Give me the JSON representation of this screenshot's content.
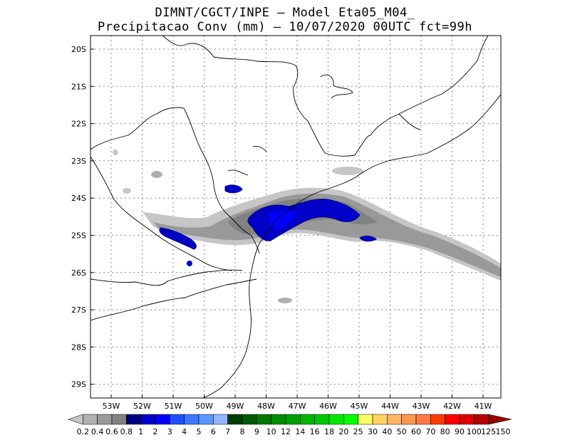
{
  "title": {
    "line1": "DIMNT/CGCT/INPE –  Model Eta05_M04_",
    "line2": "Precipitacao Conv (mm) – 10/07/2020 00UTC fct=99h"
  },
  "map": {
    "lat_labels": [
      "20S",
      "21S",
      "22S",
      "23S",
      "24S",
      "25S",
      "26S",
      "27S",
      "28S",
      "29S"
    ],
    "lon_labels": [
      "53W",
      "52W",
      "51W",
      "50W",
      "49W",
      "48W",
      "47W",
      "46W",
      "45W",
      "44W",
      "43W",
      "42W",
      "41W"
    ]
  },
  "colorbar": {
    "labels": [
      "0.2",
      "0.4",
      "0.6",
      "0.8",
      "1",
      "2",
      "3",
      "4",
      "5",
      "6",
      "7",
      "8",
      "9",
      "10",
      "12",
      "14",
      "16",
      "18",
      "20",
      "25",
      "30",
      "40",
      "50",
      "60",
      "70",
      "80",
      "90",
      "100",
      "125",
      "150"
    ],
    "colors": [
      "#c6c6c6",
      "#b0b0b0",
      "#999999",
      "#828282",
      "#000080",
      "#0000c8",
      "#0000ff",
      "#1e50ff",
      "#3c78ff",
      "#5a96ff",
      "#96b4ff",
      "#003c00",
      "#005a00",
      "#007800",
      "#008c00",
      "#00a000",
      "#00b400",
      "#00c800",
      "#00e600",
      "#00ff00",
      "#ffff64",
      "#ffd264",
      "#ffb464",
      "#ff9650",
      "#ff7846",
      "#ff3c00",
      "#ff0000",
      "#dc0000",
      "#b40000",
      "#960000"
    ]
  }
}
